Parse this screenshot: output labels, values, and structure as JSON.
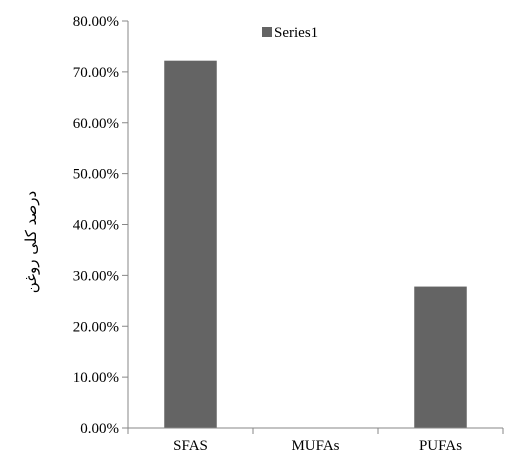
{
  "chart_data": {
    "type": "bar",
    "categories": [
      "SFAS",
      "MUFAs",
      "PUFAs"
    ],
    "series": [
      {
        "name": "Series1",
        "values": [
          72.2,
          0,
          27.8
        ]
      }
    ],
    "ylabel": "درصد کلی روغن",
    "ylim": [
      0,
      80
    ],
    "yticks": [
      0,
      10,
      20,
      30,
      40,
      50,
      60,
      70,
      80
    ],
    "ytick_format": "percent_2dp",
    "grid": false,
    "legend": "top",
    "colors": {
      "bar": "#646464",
      "axis": "#878787"
    }
  }
}
